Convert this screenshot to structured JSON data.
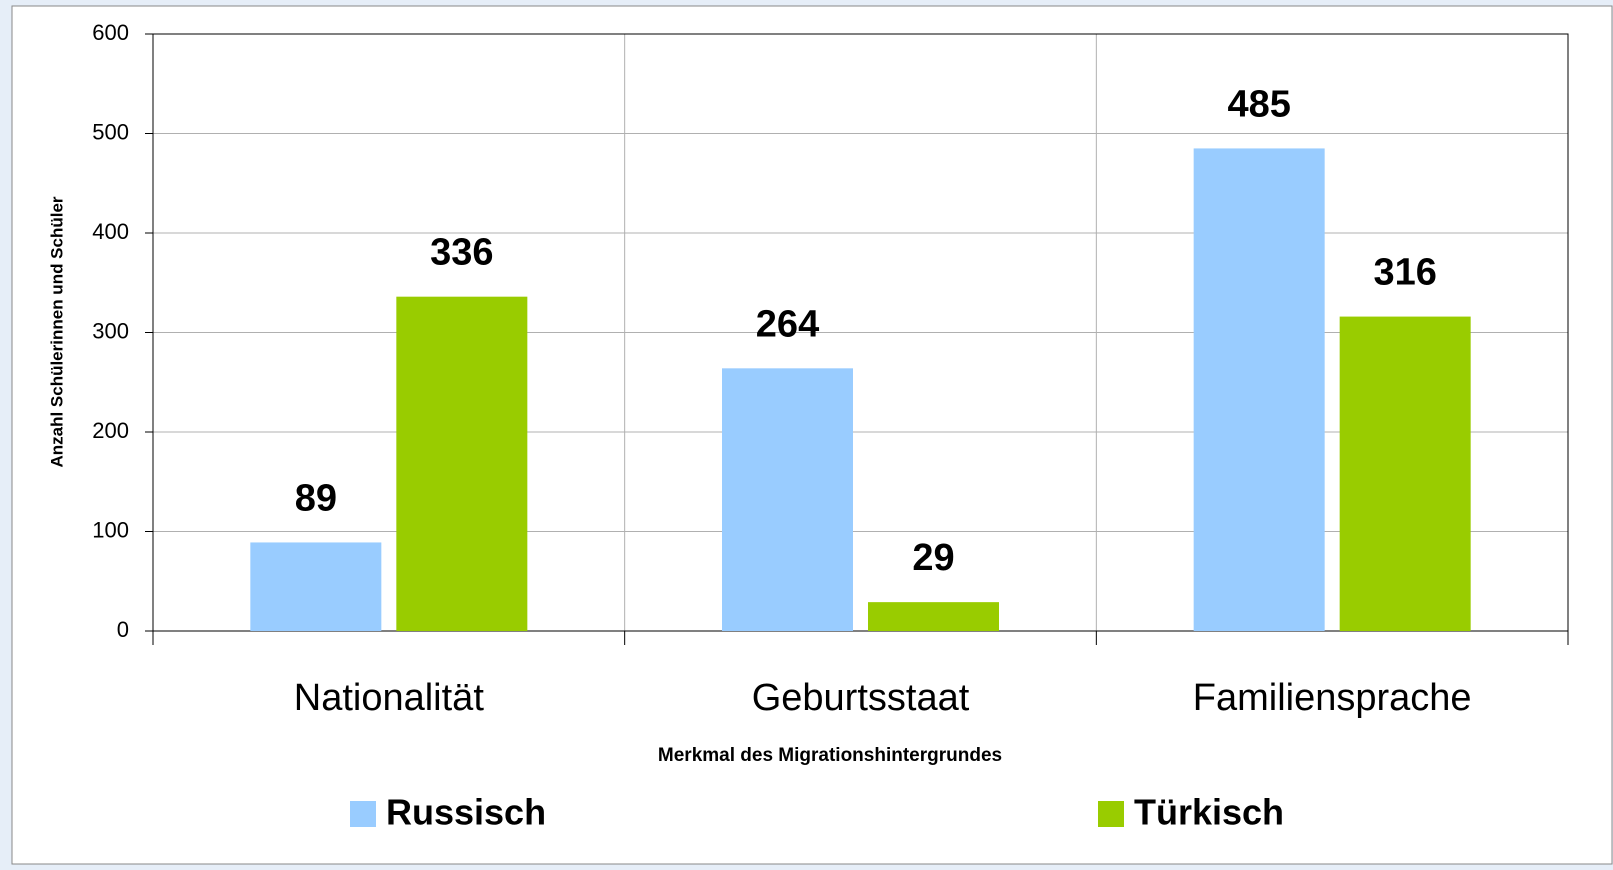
{
  "chart_data": {
    "type": "bar",
    "categories": [
      "Nationalität",
      "Geburtsstaat",
      "Familiensprache"
    ],
    "series": [
      {
        "name": "Russisch",
        "color": "#99ccff",
        "values": [
          89,
          264,
          485
        ]
      },
      {
        "name": "Türkisch",
        "color": "#99cc00",
        "values": [
          336,
          29,
          316
        ]
      }
    ],
    "ylim": [
      0,
      600
    ],
    "yticks": [
      0,
      100,
      200,
      300,
      400,
      500,
      600
    ],
    "xlabel": "Merkmal des Migrationshintergrundes",
    "ylabel": "Anzahl Schülerinnen und Schüler",
    "grid": true,
    "legend": "bottom"
  }
}
